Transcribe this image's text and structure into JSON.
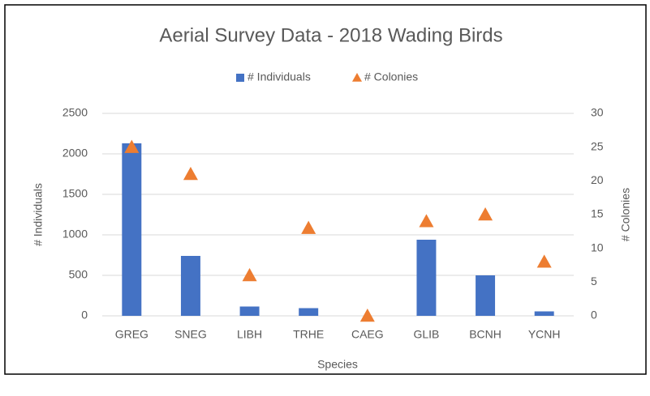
{
  "chart_data": {
    "type": "bar",
    "title": "Aerial Survey Data - 2018 Wading Birds",
    "x_label": "Species",
    "y_label": "# Individuals",
    "y2_label": "# Colonies",
    "categories": [
      "GREG",
      "SNEG",
      "LIBH",
      "TRHE",
      "CAEG",
      "GLIB",
      "BCNH",
      "YCNH"
    ],
    "series": [
      {
        "name": "# Individuals",
        "type": "bar",
        "color": "#4472c4",
        "values": [
          2130,
          740,
          115,
          95,
          0,
          940,
          500,
          55
        ]
      },
      {
        "name": "# Colonies",
        "type": "marker",
        "marker": "triangle",
        "axis": "y2",
        "color": "#ed7d31",
        "values": [
          25,
          21,
          6,
          13,
          0,
          14,
          15,
          8
        ]
      }
    ],
    "ylim": [
      0,
      2500
    ],
    "yticks": [
      0,
      500,
      1000,
      1500,
      2000,
      2500
    ],
    "y2lim": [
      0,
      30
    ],
    "y2ticks": [
      0,
      5,
      10,
      15,
      20,
      25,
      30
    ],
    "grid": true,
    "legend": "top"
  }
}
